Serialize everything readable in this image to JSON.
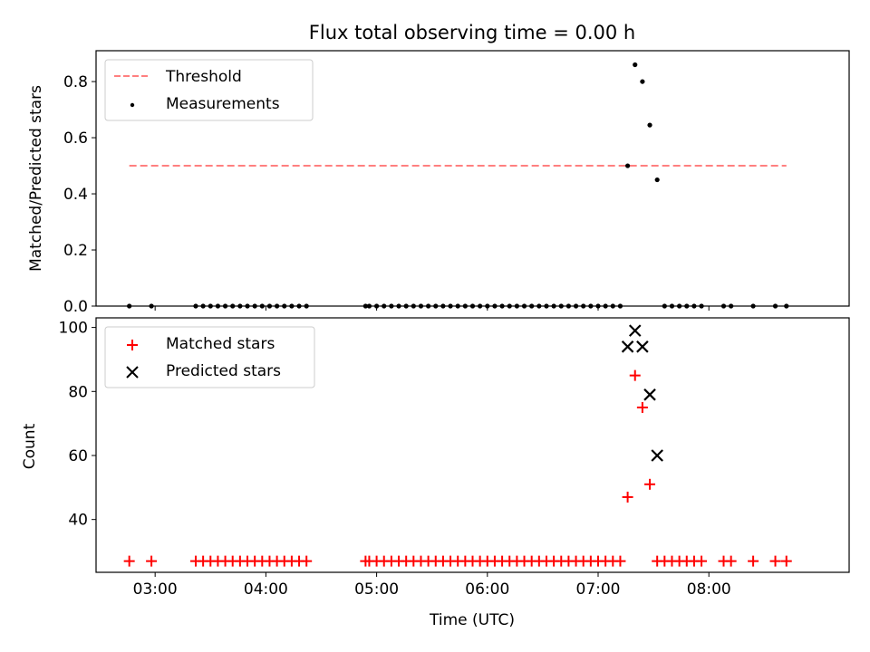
{
  "chart_data": [
    {
      "type": "scatter",
      "title": "Flux total observing time = 0.00 h",
      "xlabel": "",
      "ylabel": "Matched/Predicted stars",
      "xlim": [
        "02:28",
        "09:16"
      ],
      "ylim": [
        0,
        0.91
      ],
      "yticks": [
        0.0,
        0.2,
        0.4,
        0.6,
        0.8
      ],
      "ytick_labels": [
        "0.0",
        "0.2",
        "0.4",
        "0.6",
        "0.8"
      ],
      "legend_position": "top-left",
      "grid": false,
      "series": [
        {
          "name": "Threshold",
          "style": "dashed-line",
          "color": "#ff7f7f",
          "x": [
            "02:46",
            "08:42"
          ],
          "y": [
            0.5,
            0.5
          ]
        },
        {
          "name": "Measurements",
          "style": "dot",
          "color": "#000000",
          "x": [
            "02:46",
            "02:58",
            "03:22",
            "03:26",
            "03:30",
            "03:34",
            "03:38",
            "03:42",
            "03:46",
            "03:50",
            "03:54",
            "03:58",
            "04:02",
            "04:06",
            "04:10",
            "04:14",
            "04:18",
            "04:22",
            "04:54",
            "04:56",
            "05:00",
            "05:04",
            "05:08",
            "05:12",
            "05:16",
            "05:20",
            "05:24",
            "05:28",
            "05:32",
            "05:36",
            "05:40",
            "05:44",
            "05:48",
            "05:52",
            "05:56",
            "06:00",
            "06:04",
            "06:08",
            "06:12",
            "06:16",
            "06:20",
            "06:24",
            "06:28",
            "06:32",
            "06:36",
            "06:40",
            "06:44",
            "06:48",
            "06:52",
            "06:56",
            "07:00",
            "07:04",
            "07:08",
            "07:12",
            "07:16",
            "07:20",
            "07:24",
            "07:28",
            "07:32",
            "07:36",
            "07:40",
            "07:44",
            "07:48",
            "07:52",
            "07:56",
            "08:08",
            "08:12",
            "08:24",
            "08:36",
            "08:42"
          ],
          "y": [
            0,
            0,
            0,
            0,
            0,
            0,
            0,
            0,
            0,
            0,
            0,
            0,
            0,
            0,
            0,
            0,
            0,
            0,
            0,
            0,
            0,
            0,
            0,
            0,
            0,
            0,
            0,
            0,
            0,
            0,
            0,
            0,
            0,
            0,
            0,
            0,
            0,
            0,
            0,
            0,
            0,
            0,
            0,
            0,
            0,
            0,
            0,
            0,
            0,
            0,
            0,
            0,
            0,
            0,
            0.5,
            0.86,
            0.8,
            0.645,
            0.45,
            0,
            0,
            0,
            0,
            0,
            0,
            0,
            0,
            0,
            0,
            0
          ]
        }
      ]
    },
    {
      "type": "scatter",
      "title": "",
      "xlabel": "Time (UTC)",
      "ylabel": "Count",
      "xlim": [
        "02:28",
        "09:16"
      ],
      "ylim": [
        23.5,
        103
      ],
      "xticks": [
        "03:00",
        "04:00",
        "05:00",
        "06:00",
        "07:00",
        "08:00"
      ],
      "yticks": [
        40,
        60,
        80,
        100
      ],
      "ytick_labels": [
        "40",
        "60",
        "80",
        "100"
      ],
      "legend_position": "top-left",
      "grid": false,
      "series": [
        {
          "name": "Matched stars",
          "style": "plus",
          "color": "#ff0000",
          "x": [
            "02:46",
            "02:58",
            "03:22",
            "03:26",
            "03:30",
            "03:34",
            "03:38",
            "03:42",
            "03:46",
            "03:50",
            "03:54",
            "03:58",
            "04:02",
            "04:06",
            "04:10",
            "04:14",
            "04:18",
            "04:22",
            "04:54",
            "04:56",
            "05:00",
            "05:04",
            "05:08",
            "05:12",
            "05:16",
            "05:20",
            "05:24",
            "05:28",
            "05:32",
            "05:36",
            "05:40",
            "05:44",
            "05:48",
            "05:52",
            "05:56",
            "06:00",
            "06:04",
            "06:08",
            "06:12",
            "06:16",
            "06:20",
            "06:24",
            "06:28",
            "06:32",
            "06:36",
            "06:40",
            "06:44",
            "06:48",
            "06:52",
            "06:56",
            "07:00",
            "07:04",
            "07:08",
            "07:12",
            "07:16",
            "07:20",
            "07:24",
            "07:28",
            "07:32",
            "07:36",
            "07:40",
            "07:44",
            "07:48",
            "07:52",
            "07:56",
            "08:08",
            "08:12",
            "08:24",
            "08:36",
            "08:42"
          ],
          "y": [
            27,
            27,
            27,
            27,
            27,
            27,
            27,
            27,
            27,
            27,
            27,
            27,
            27,
            27,
            27,
            27,
            27,
            27,
            27,
            27,
            27,
            27,
            27,
            27,
            27,
            27,
            27,
            27,
            27,
            27,
            27,
            27,
            27,
            27,
            27,
            27,
            27,
            27,
            27,
            27,
            27,
            27,
            27,
            27,
            27,
            27,
            27,
            27,
            27,
            27,
            27,
            27,
            27,
            27,
            47,
            85,
            75,
            51,
            27,
            27,
            27,
            27,
            27,
            27,
            27,
            27,
            27,
            27,
            27,
            27
          ]
        },
        {
          "name": "Predicted stars",
          "style": "x",
          "color": "#000000",
          "x": [
            "07:16",
            "07:20",
            "07:24",
            "07:28",
            "07:32"
          ],
          "y": [
            94,
            99,
            94,
            79,
            60
          ]
        }
      ]
    }
  ]
}
